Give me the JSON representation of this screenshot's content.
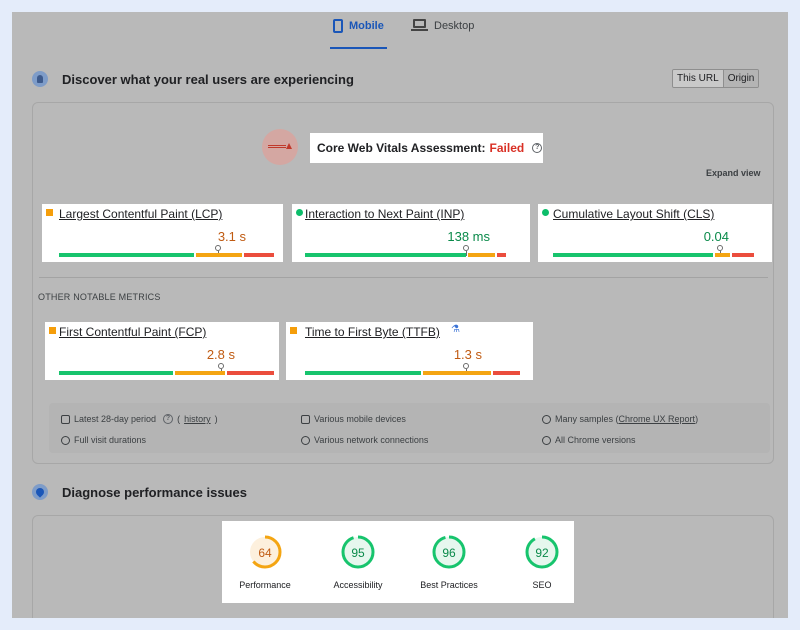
{
  "tabs": [
    {
      "label": "Mobile",
      "icon": "phone-icon",
      "active": true
    },
    {
      "label": "Desktop",
      "icon": "laptop-icon",
      "active": false
    }
  ],
  "field_section": {
    "title": "Discover what your real users are experiencing",
    "icon": "users-icon",
    "toggle": {
      "option_a": "This URL",
      "option_b": "Origin"
    }
  },
  "assessment": {
    "label": "Core Web Vitals Assessment:",
    "status": "Failed",
    "status_color": "#d93025",
    "expand_label": "Expand view"
  },
  "core_metrics": [
    {
      "name": "Largest Contentful Paint (LCP)",
      "value": "3.1 s",
      "rating": "orange",
      "marker_fraction": 0.67
    },
    {
      "name": "Interaction to Next Paint (INP)",
      "value": "138 ms",
      "rating": "green",
      "marker_fraction": 0.74
    },
    {
      "name": "Cumulative Layout Shift (CLS)",
      "value": "0.04",
      "rating": "green",
      "marker_fraction": 0.75
    }
  ],
  "other_metrics_title": "OTHER NOTABLE METRICS",
  "other_metrics": [
    {
      "name": "First Contentful Paint (FCP)",
      "value": "2.8 s",
      "rating": "orange",
      "marker_fraction": 0.76
    },
    {
      "name": "Time to First Byte (TTFB)",
      "value": "1.3 s",
      "rating": "orange",
      "marker_fraction": 0.76,
      "experimental_icon": "flask-icon"
    }
  ],
  "info": {
    "period_prefix": "Latest 28-day period",
    "history_link": "history",
    "visit_durations": "Full visit durations",
    "devices": "Various mobile devices",
    "network": "Various network connections",
    "samples_prefix": "Many samples (",
    "crux_link": "Chrome UX Report",
    "samples_suffix": ")",
    "chrome_versions": "All Chrome versions"
  },
  "diagnose_section": {
    "title": "Diagnose performance issues",
    "icon": "gauge-icon"
  },
  "scores": [
    {
      "label": "Performance",
      "value": 64,
      "color": "#f4a512",
      "text_color": "#c05b12",
      "bg": "#fdf0dd"
    },
    {
      "label": "Accessibility",
      "value": 95,
      "color": "#17c46d",
      "text_color": "#0a8a4a",
      "bg": "#e6f7ee"
    },
    {
      "label": "Best Practices",
      "value": 96,
      "color": "#17c46d",
      "text_color": "#0a8a4a",
      "bg": "#e6f7ee"
    },
    {
      "label": "SEO",
      "value": 92,
      "color": "#17c46d",
      "text_color": "#0a8a4a",
      "bg": "#e6f7ee"
    }
  ]
}
